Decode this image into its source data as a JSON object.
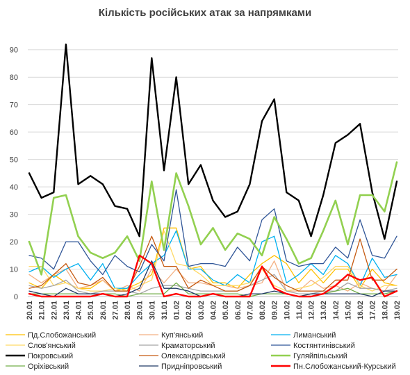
{
  "chart_data": {
    "type": "line",
    "title": "Кількість російських атак за напрямками",
    "xlabel": "",
    "ylabel": "",
    "ylim": [
      0,
      95
    ],
    "yticks": [
      0,
      10,
      20,
      30,
      40,
      50,
      60,
      70,
      80,
      90
    ],
    "grid": "horizontal",
    "legend_position": "bottom",
    "categories": [
      "20.01",
      "21.01",
      "22.01",
      "23.01",
      "24.01",
      "25.01",
      "26.01",
      "27.01",
      "28.01",
      "29.01",
      "30.01",
      "31.01",
      "01.02",
      "02.02",
      "03.02",
      "04.02",
      "05.02",
      "06.02",
      "07.02",
      "08.02",
      "09.02",
      "10.02",
      "11.02",
      "12.02",
      "13.02",
      "14.02",
      "15.02",
      "16.02",
      "17.02",
      "18.02",
      "19.02"
    ],
    "series": [
      {
        "name": "Пд.Слобожанський",
        "color": "#FFC000",
        "width": 1.3,
        "values": [
          5,
          3,
          8,
          5,
          3,
          3,
          6,
          2,
          3,
          5,
          8,
          25,
          25,
          10,
          11,
          5,
          5,
          3,
          8,
          12,
          15,
          12,
          5,
          10,
          5,
          10,
          10,
          3,
          10,
          5,
          4
        ]
      },
      {
        "name": "Куп'янський",
        "color": "#F4B183",
        "width": 1.3,
        "values": [
          8,
          5,
          8,
          10,
          3,
          4,
          6,
          2,
          4,
          2,
          10,
          5,
          10,
          5,
          5,
          4,
          4,
          3,
          4,
          5,
          13,
          2,
          2,
          6,
          3,
          4,
          2,
          5,
          3,
          2,
          8
        ]
      },
      {
        "name": "Лиманський",
        "color": "#00B0F0",
        "width": 1.3,
        "values": [
          9,
          11,
          7,
          10,
          12,
          6,
          12,
          3,
          3,
          8,
          12,
          15,
          24,
          10,
          10,
          6,
          4,
          8,
          5,
          20,
          22,
          5,
          8,
          12,
          8,
          15,
          12,
          4,
          14,
          7,
          8
        ]
      },
      {
        "name": "Слов'янський",
        "color": "#FFD966",
        "width": 1.3,
        "values": [
          11,
          11,
          4,
          5,
          3,
          2,
          2,
          3,
          2,
          4,
          6,
          24,
          12,
          11,
          8,
          4,
          4,
          4,
          5,
          10,
          4,
          2,
          3,
          4,
          7,
          11,
          11,
          4,
          2,
          4,
          4
        ]
      },
      {
        "name": "Краматорський",
        "color": "#A5A5A5",
        "width": 1.3,
        "values": [
          4,
          3,
          4,
          6,
          2,
          1,
          2,
          2,
          2,
          1,
          3,
          4,
          4,
          3,
          2,
          2,
          2,
          2,
          4,
          6,
          8,
          2,
          1,
          1,
          2,
          2,
          5,
          3,
          3,
          2,
          3
        ]
      },
      {
        "name": "Костянтинівський",
        "color": "#2F5597",
        "width": 1.3,
        "values": [
          15,
          14,
          10,
          20,
          20,
          13,
          8,
          15,
          11,
          9,
          19,
          13,
          39,
          11,
          12,
          12,
          11,
          18,
          13,
          28,
          32,
          13,
          11,
          12,
          12,
          18,
          14,
          28,
          15,
          14,
          22
        ]
      },
      {
        "name": "Покровський",
        "color": "#000000",
        "width": 2.4,
        "values": [
          45,
          36,
          38,
          92,
          41,
          44,
          41,
          33,
          32,
          22,
          87,
          46,
          80,
          41,
          48,
          35,
          29,
          31,
          41,
          64,
          72,
          38,
          35,
          22,
          37,
          56,
          59,
          63,
          38,
          21,
          42
        ]
      },
      {
        "name": "Олександрівський",
        "color": "#C55A11",
        "width": 1.3,
        "values": [
          3,
          4,
          8,
          12,
          5,
          4,
          7,
          2,
          2,
          11,
          22,
          11,
          11,
          3,
          6,
          4,
          2,
          2,
          4,
          11,
          7,
          4,
          2,
          2,
          2,
          6,
          6,
          21,
          6,
          6,
          10
        ]
      },
      {
        "name": "Гуляйпільський",
        "color": "#92D050",
        "width": 2.6,
        "values": [
          20,
          8,
          36,
          37,
          22,
          16,
          14,
          16,
          22,
          13,
          42,
          17,
          45,
          33,
          19,
          25,
          17,
          23,
          21,
          15,
          29,
          21,
          12,
          14,
          24,
          35,
          19,
          37,
          37,
          31,
          49
        ]
      },
      {
        "name": "Оріхівський",
        "color": "#70AD47",
        "width": 1.3,
        "values": [
          1,
          1,
          1,
          1,
          1,
          1,
          1,
          1,
          0,
          1,
          1,
          1,
          5,
          1,
          1,
          1,
          1,
          1,
          0,
          1,
          1,
          1,
          0,
          1,
          1,
          2,
          3,
          1,
          1,
          1,
          2
        ]
      },
      {
        "name": "Придніпровський",
        "color": "#1F3864",
        "width": 1.3,
        "values": [
          2,
          1,
          0,
          3,
          1,
          1,
          1,
          0,
          1,
          3,
          13,
          3,
          3,
          2,
          0,
          1,
          0,
          0,
          1,
          1,
          2,
          1,
          0,
          1,
          1,
          1,
          1,
          1,
          0,
          2,
          2
        ]
      },
      {
        "name": "Пн.Слобожанський-Курський",
        "color": "#FF0000",
        "width": 2.4,
        "values": [
          1,
          0,
          0,
          0,
          0,
          0,
          1,
          0,
          0,
          15,
          12,
          0,
          1,
          0,
          0,
          1,
          0,
          0,
          0,
          11,
          3,
          1,
          0,
          0,
          1,
          4,
          8,
          6,
          7,
          0,
          2
        ]
      }
    ]
  }
}
